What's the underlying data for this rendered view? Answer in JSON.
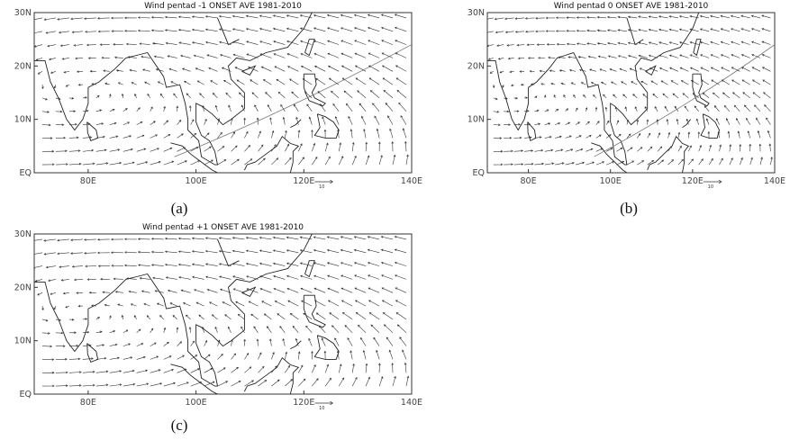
{
  "panels": [
    {
      "title": "Wind pentad -1 ONSET AVE 1981-2010",
      "label": "(a)",
      "ref_vector": "10",
      "xlim": [
        70,
        140
      ],
      "ylim": [
        0,
        30
      ],
      "xticks": [
        {
          "value": 80,
          "label": "80E"
        },
        {
          "value": 100,
          "label": "100E"
        },
        {
          "value": 120,
          "label": "120E"
        },
        {
          "value": 140,
          "label": "140E"
        }
      ],
      "yticks": [
        {
          "value": 0,
          "label": "EQ"
        },
        {
          "value": 10,
          "label": "10N"
        },
        {
          "value": 20,
          "label": "20N"
        },
        {
          "value": 30,
          "label": "30N"
        }
      ]
    },
    {
      "title": "Wind pentad 0 ONSET AVE 1981-2010",
      "label": "(b)",
      "ref_vector": "10",
      "xlim": [
        70,
        140
      ],
      "ylim": [
        0,
        30
      ],
      "xticks": [
        {
          "value": 80,
          "label": "80E"
        },
        {
          "value": 100,
          "label": "100E"
        },
        {
          "value": 120,
          "label": "120E"
        },
        {
          "value": 140,
          "label": "140E"
        }
      ],
      "yticks": [
        {
          "value": 0,
          "label": "EQ"
        },
        {
          "value": 10,
          "label": "10N"
        },
        {
          "value": 20,
          "label": "20N"
        },
        {
          "value": 30,
          "label": "30N"
        }
      ]
    },
    {
      "title": "Wind pentad +1 ONSET AVE 1981-2010",
      "label": "(c)",
      "ref_vector": "10",
      "xlim": [
        70,
        140
      ],
      "ylim": [
        0,
        30
      ],
      "xticks": [
        {
          "value": 80,
          "label": "80E"
        },
        {
          "value": 100,
          "label": "100E"
        },
        {
          "value": 120,
          "label": "120E"
        },
        {
          "value": 140,
          "label": "140E"
        }
      ],
      "yticks": [
        {
          "value": 0,
          "label": "EQ"
        },
        {
          "value": 10,
          "label": "10N"
        },
        {
          "value": 20,
          "label": "20N"
        },
        {
          "value": 30,
          "label": "30N"
        }
      ]
    }
  ]
}
